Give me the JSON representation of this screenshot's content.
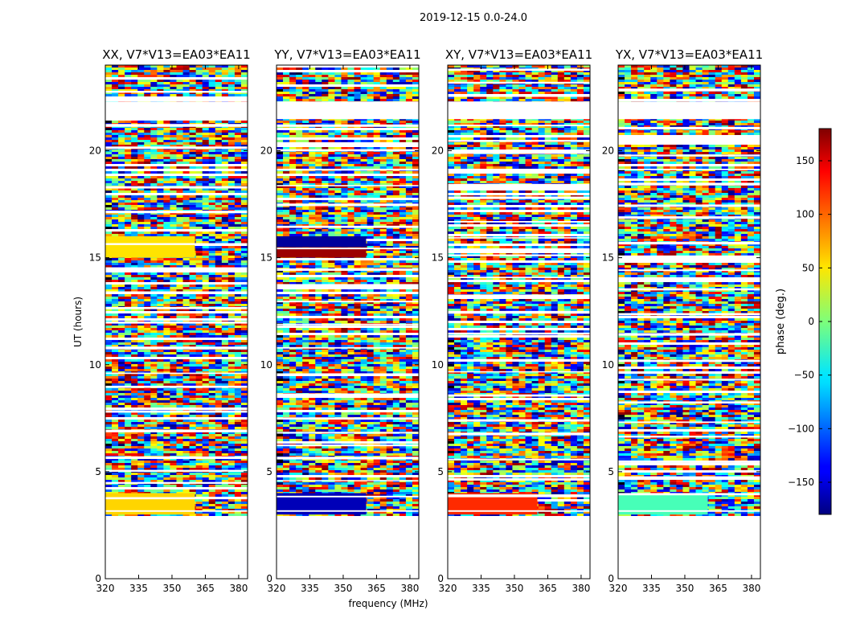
{
  "figure": {
    "suptitle": "2019-12-15 0.0-24.0"
  },
  "chart_data": [
    {
      "type": "heatmap",
      "title": "XX, V7*V13=EA03*EA11",
      "polarization": "XX",
      "xlabel": "frequency (MHz)",
      "ylabel": "UT (hours)",
      "xlim": [
        320,
        384
      ],
      "ylim": [
        0,
        24
      ],
      "xticks": [
        "320",
        "335",
        "350",
        "365",
        "380"
      ],
      "yticks": [
        "0",
        "5",
        "10",
        "15",
        "20"
      ],
      "colored_hours": [
        3.0,
        24.0
      ],
      "coherent_bands": [
        {
          "y0": 3.0,
          "y1": 4.0,
          "phase": 60
        },
        {
          "y0": 15.0,
          "y1": 16.0,
          "phase": 55
        }
      ]
    },
    {
      "type": "heatmap",
      "title": "YY, V7*V13=EA03*EA11",
      "polarization": "YY",
      "xlabel": "frequency (MHz)",
      "ylabel": "UT (hours)",
      "xlim": [
        320,
        384
      ],
      "ylim": [
        0,
        24
      ],
      "xticks": [
        "320",
        "335",
        "350",
        "365",
        "380"
      ],
      "yticks": [
        "0",
        "5",
        "10",
        "15",
        "20"
      ],
      "colored_hours": [
        3.0,
        24.0
      ],
      "coherent_bands": [
        {
          "y0": 3.0,
          "y1": 4.0,
          "phase": -160
        },
        {
          "y0": 15.0,
          "y1": 15.5,
          "phase": 170
        },
        {
          "y0": 15.5,
          "y1": 16.0,
          "phase": -170
        }
      ]
    },
    {
      "type": "heatmap",
      "title": "XY, V7*V13=EA03*EA11",
      "polarization": "XY",
      "xlabel": "frequency (MHz)",
      "ylabel": "UT (hours)",
      "xlim": [
        320,
        384
      ],
      "ylim": [
        0,
        24
      ],
      "xticks": [
        "320",
        "335",
        "350",
        "365",
        "380"
      ],
      "yticks": [
        "0",
        "5",
        "10",
        "15",
        "20"
      ],
      "colored_hours": [
        3.0,
        24.0
      ],
      "coherent_bands": [
        {
          "y0": 3.0,
          "y1": 4.0,
          "phase": 120
        }
      ]
    },
    {
      "type": "heatmap",
      "title": "YX, V7*V13=EA03*EA11",
      "polarization": "YX",
      "xlabel": "frequency (MHz)",
      "ylabel": "UT (hours)",
      "xlim": [
        320,
        384
      ],
      "ylim": [
        0,
        24
      ],
      "xticks": [
        "320",
        "335",
        "350",
        "365",
        "380"
      ],
      "yticks": [
        "0",
        "5",
        "10",
        "15",
        "20"
      ],
      "colored_hours": [
        3.0,
        24.0
      ],
      "coherent_bands": [
        {
          "y0": 3.0,
          "y1": 4.0,
          "phase": -20
        }
      ]
    }
  ],
  "colorbar": {
    "label": "phase (deg.)",
    "colormap": "jet",
    "range": [
      -180,
      180
    ],
    "ticks": [
      {
        "value": 150,
        "label": "150"
      },
      {
        "value": 100,
        "label": "100"
      },
      {
        "value": 50,
        "label": "50"
      },
      {
        "value": 0,
        "label": "0"
      },
      {
        "value": -50,
        "label": "−50"
      },
      {
        "value": -100,
        "label": "−100"
      },
      {
        "value": -150,
        "label": "−150"
      }
    ]
  }
}
